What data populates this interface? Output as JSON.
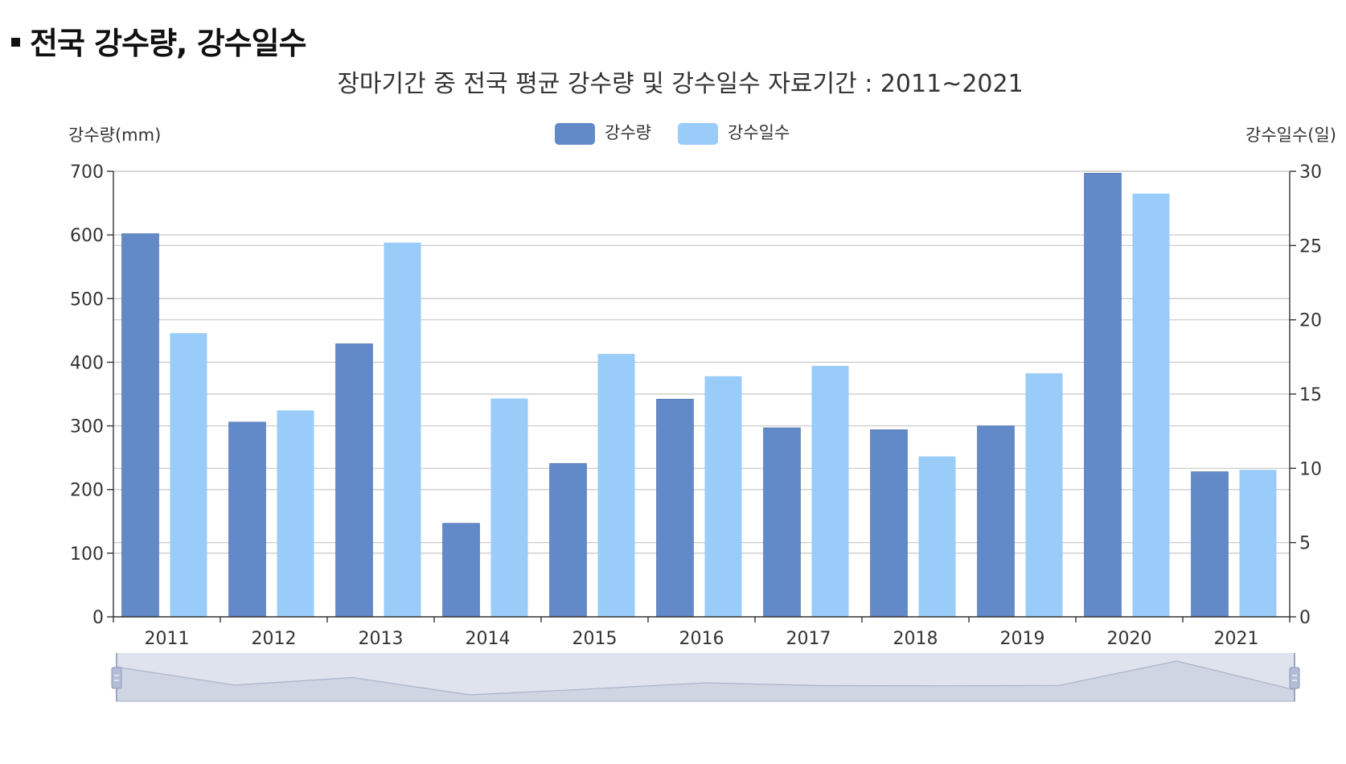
{
  "section_title": "전국 강수량, 강수일수",
  "chart_data": {
    "type": "bar",
    "title": "장마기간 중 전국 평균 강수량 및 강수일수 자료기간 : 2011~2021",
    "categories": [
      "2011",
      "2012",
      "2013",
      "2014",
      "2015",
      "2016",
      "2017",
      "2018",
      "2019",
      "2020",
      "2021"
    ],
    "series": [
      {
        "name": "강수량",
        "axis": "left",
        "color": "#6289c8",
        "values": [
          602,
          306,
          429,
          147,
          241,
          342,
          297,
          294,
          300,
          697,
          228
        ]
      },
      {
        "name": "강수일수",
        "axis": "right",
        "color": "#99ccf8",
        "values": [
          19.1,
          13.9,
          25.2,
          14.7,
          17.7,
          16.2,
          16.9,
          10.8,
          16.4,
          28.5,
          9.9
        ]
      }
    ],
    "ylabel": "강수량(mm)",
    "ylabel_right": "강수일수(일)",
    "ylim": [
      0,
      700
    ],
    "ylim_right": [
      0,
      30
    ],
    "yticks": [
      0,
      100,
      200,
      300,
      400,
      500,
      600,
      700
    ],
    "yticks_right": [
      0,
      5,
      10,
      15,
      20,
      25,
      30
    ],
    "grid": true,
    "legend_position": "top-center",
    "has_zoom_slider": true
  }
}
